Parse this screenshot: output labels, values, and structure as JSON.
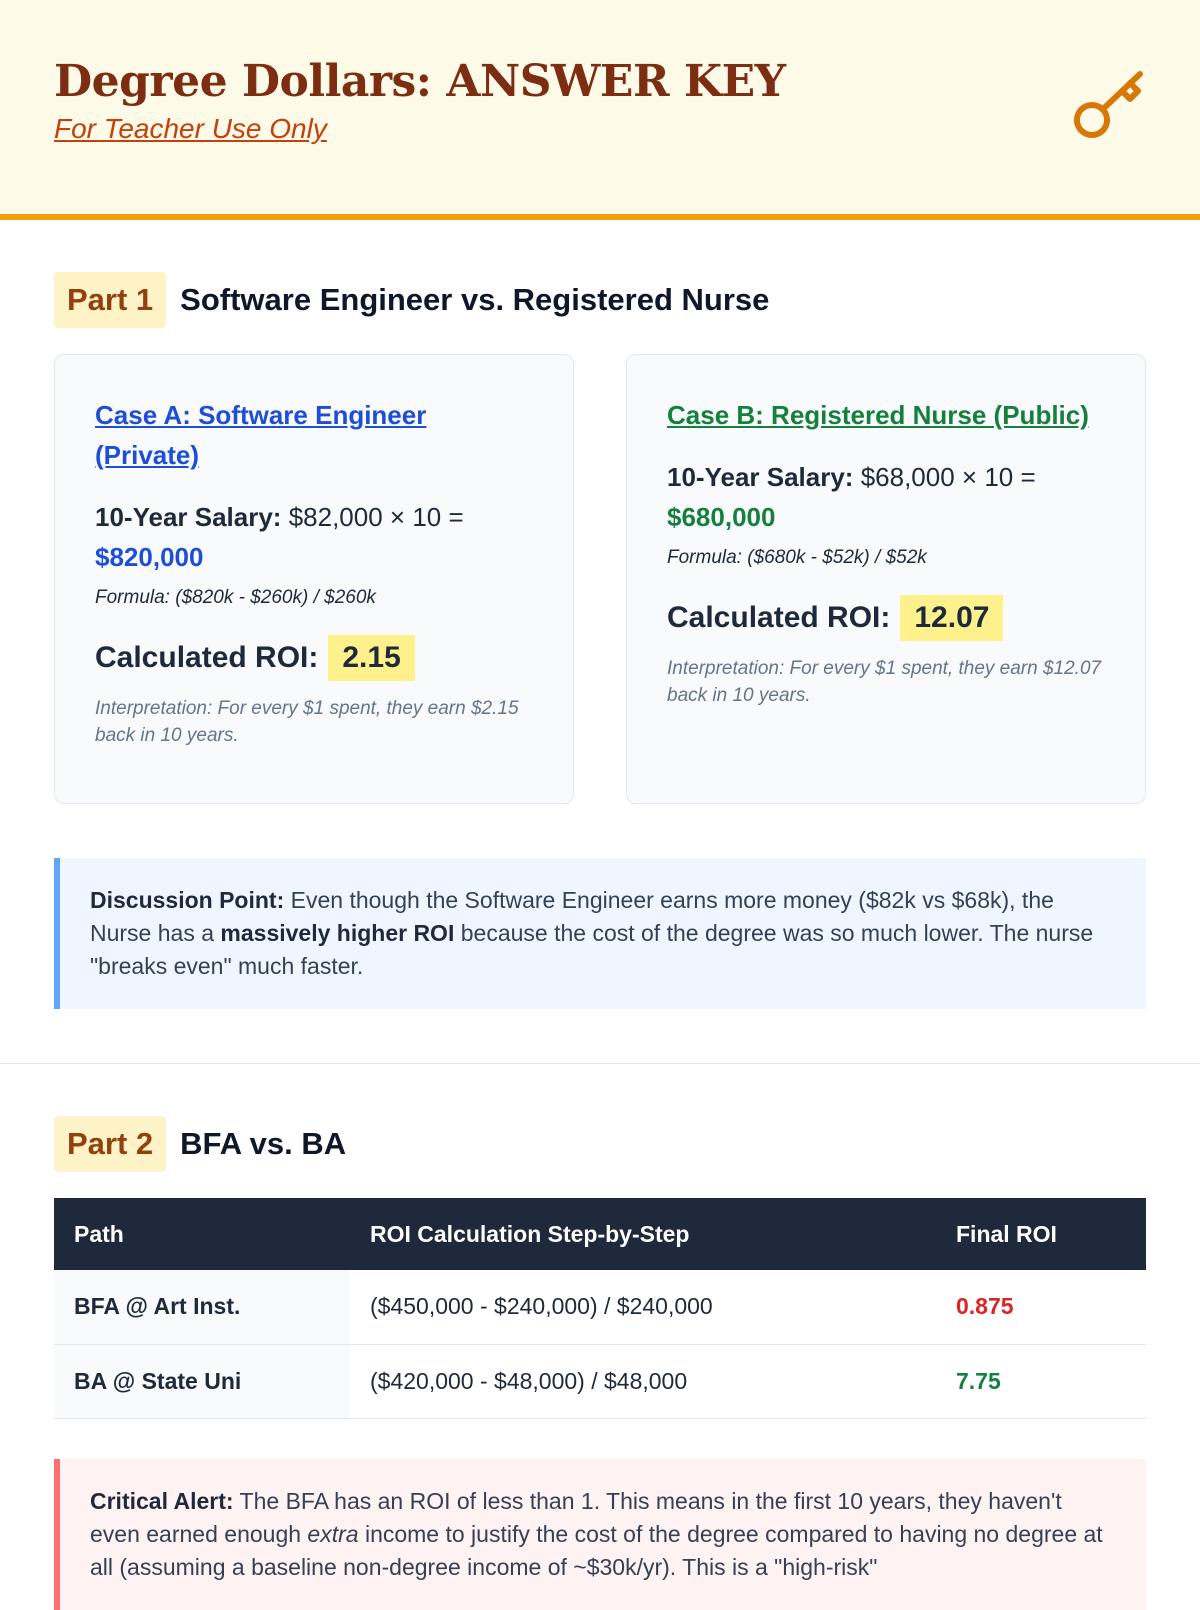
{
  "header": {
    "title": "Degree Dollars: ANSWER KEY",
    "subtitle": "For Teacher Use Only",
    "icon": "key-icon"
  },
  "part1": {
    "badge": "Part 1",
    "title": "Software Engineer vs. Registered Nurse",
    "cards": [
      {
        "case": "Case A: Software Engineer (Private)",
        "salary_label": "10-Year Salary:",
        "salary_calc": "$82,000 × 10 =",
        "salary_total": "$820,000",
        "formula": "Formula: ($820k - $260k) / $260k",
        "roi_label": "Calculated ROI:",
        "roi_value": "2.15",
        "interpretation": "Interpretation: For every $1 spent, they earn $2.15 back in 10 years.",
        "color": "#1d4ed8"
      },
      {
        "case": "Case B: Registered Nurse (Public)",
        "salary_label": "10-Year Salary:",
        "salary_calc": "$68,000 × 10 =",
        "salary_total": "$680,000",
        "formula": "Formula: ($680k - $52k) / $52k",
        "roi_label": "Calculated ROI:",
        "roi_value": "12.07",
        "interpretation": "Interpretation: For every $1 spent, they earn $12.07 back in 10 years.",
        "color": "#15803d"
      }
    ],
    "discussion": {
      "label": "Discussion Point:",
      "text1": " Even though the Software Engineer earns more money ($82k vs $68k), the Nurse has a ",
      "bold": "massively higher ROI",
      "text2": " because the cost of the degree was so much lower. The nurse \"breaks even\" much faster."
    }
  },
  "part2": {
    "badge": "Part 2",
    "title": "BFA vs. BA",
    "columns": [
      "Path",
      "ROI Calculation Step-by-Step",
      "Final ROI"
    ],
    "rows": [
      {
        "path": "BFA @ Art Inst.",
        "calc": "($450,000 - $240,000) / $240,000",
        "final": "0.875",
        "color": "#dc2626"
      },
      {
        "path": "BA @ State Uni",
        "calc": "($420,000 - $48,000) / $48,000",
        "final": "7.75",
        "color": "#15803d"
      }
    ],
    "alert": {
      "label": "Critical Alert:",
      "text1": " The BFA has an ROI of less than 1. This means in the first 10 years, they haven't even earned enough ",
      "em": "extra",
      "text2": " income to justify the cost of the degree compared to having no degree at all (assuming a baseline non-degree income of ~$30k/yr). This is a \"high-risk\""
    }
  }
}
